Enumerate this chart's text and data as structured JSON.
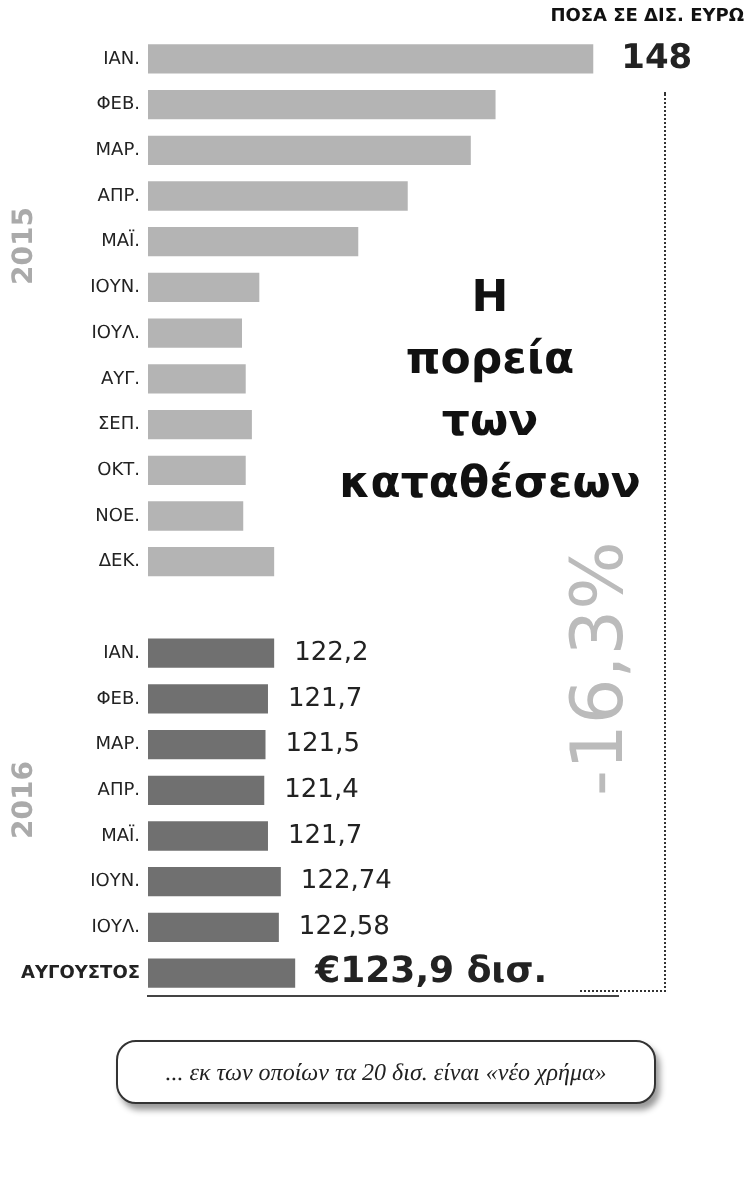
{
  "chart_data": {
    "type": "bar",
    "orientation": "horizontal",
    "title": "Η πορεία των καταθέσεων",
    "subtitle": "ΠΟΣΑ ΣΕ ΔΙΣ. ΕΥΡΩ",
    "categories": [
      "ΙΑΝ.",
      "ΦΕΒ.",
      "ΜΑΡ.",
      "ΑΠΡ.",
      "ΜΑΪ.",
      "ΙΟΥΝ.",
      "ΙΟΥΛ.",
      "ΑΥΓ.",
      "ΣΕΠ.",
      "ΟΚΤ.",
      "ΝΟΕ.",
      "ΔΕΚ.",
      null,
      "ΙΑΝ.",
      "ΦΕΒ.",
      "ΜΑΡ.",
      "ΑΠΡ.",
      "ΜΑΪ.",
      "ΙΟΥΝ.",
      "ΙΟΥΛ.",
      "ΑΥΓΟΥΣΤΟΣ"
    ],
    "values": [
      148,
      140.1,
      138.1,
      133.0,
      129.0,
      121.0,
      119.6,
      119.9,
      120.4,
      119.9,
      119.7,
      122.2,
      null,
      122.2,
      121.7,
      121.5,
      121.4,
      121.7,
      122.74,
      122.58,
      123.9
    ],
    "value_labels": [
      "148",
      null,
      null,
      null,
      null,
      null,
      null,
      null,
      null,
      null,
      null,
      null,
      null,
      "122,2",
      "121,7",
      "121,5",
      "121,4",
      "121,7",
      "122,74",
      "122,58",
      "€123,9 δισ."
    ],
    "colors": [
      "#b4b4b4",
      "#b4b4b4",
      "#b4b4b4",
      "#b4b4b4",
      "#b4b4b4",
      "#b4b4b4",
      "#b4b4b4",
      "#b4b4b4",
      "#b4b4b4",
      "#b4b4b4",
      "#b4b4b4",
      "#b4b4b4",
      "#b4b4b4",
      "#707070",
      "#707070",
      "#707070",
      "#707070",
      "#707070",
      "#707070",
      "#707070",
      "#707070"
    ],
    "xlim": [
      112,
      150
    ],
    "tick_labels": "y",
    "grid": false,
    "annotations": [
      "2015",
      "2016",
      "-16,3%",
      "... εκ των οποίων τα 20 δισ. είναι «νέο χρήμα»"
    ]
  }
}
